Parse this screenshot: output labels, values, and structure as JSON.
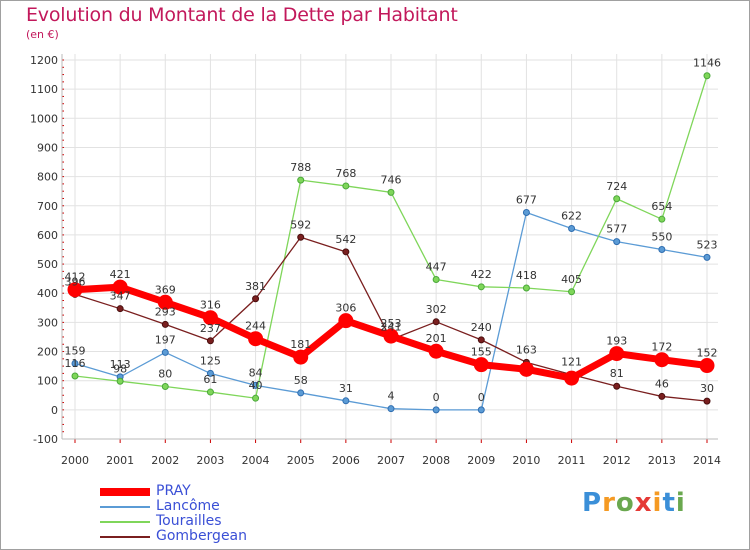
{
  "header": {
    "title": "Evolution du Montant de la Dette par Habitant",
    "subtitle": "(en €)"
  },
  "logo": {
    "letters": [
      "P",
      "r",
      "o",
      "x",
      "i",
      "t",
      "i"
    ],
    "colors": [
      "#3b8fd8",
      "#f59a23",
      "#6aa84f",
      "#e53935",
      "#f59a23",
      "#3b8fd8",
      "#6aa84f"
    ]
  },
  "chart_data": {
    "type": "line",
    "title": "Evolution du Montant de la Dette par Habitant",
    "subtitle": "(en €)",
    "x": [
      "2000",
      "2001",
      "2002",
      "2003",
      "2004",
      "2005",
      "2006",
      "2007",
      "2008",
      "2009",
      "2010",
      "2011",
      "2012",
      "2013",
      "2014"
    ],
    "ylim": [
      -100,
      1200
    ],
    "yticks": [
      -100,
      0,
      100,
      200,
      300,
      400,
      500,
      600,
      700,
      800,
      900,
      1000,
      1100,
      1200
    ],
    "grid": true,
    "legend_position": "bottom-left",
    "series": [
      {
        "name": "PRAY",
        "color": "#ff0000",
        "values": [
          412,
          421,
          369,
          316,
          244,
          181,
          306,
          253,
          201,
          155,
          139,
          109,
          193,
          172,
          152
        ],
        "labels": [
          "412",
          "421",
          "369",
          "316",
          "244",
          "181",
          "306",
          "253",
          "201",
          "155",
          "",
          "",
          "193",
          "172",
          "152"
        ]
      },
      {
        "name": "Lancôme",
        "color": "#5b9bd5",
        "values": [
          159,
          113,
          197,
          125,
          84,
          58,
          31,
          4,
          0,
          0,
          677,
          622,
          577,
          550,
          523
        ],
        "labels": [
          "159",
          "113",
          "197",
          "125",
          "84",
          "58",
          "31",
          "4",
          "0",
          "0",
          "677",
          "622",
          "577",
          "550",
          "523"
        ]
      },
      {
        "name": "Tourailles",
        "color": "#7fd65a",
        "values": [
          116,
          98,
          80,
          61,
          40,
          788,
          768,
          746,
          447,
          422,
          418,
          405,
          724,
          654,
          1146
        ],
        "labels": [
          "116",
          "98",
          "80",
          "61",
          "40",
          "788",
          "768",
          "746",
          "447",
          "422",
          "418",
          "405",
          "724",
          "654",
          "1146"
        ]
      },
      {
        "name": "Gombergean",
        "color": "#7a1f1f",
        "values": [
          396,
          347,
          293,
          237,
          381,
          592,
          542,
          241,
          302,
          240,
          163,
          121,
          81,
          46,
          30
        ],
        "labels": [
          "396",
          "347",
          "293",
          "237",
          "381",
          "592",
          "542",
          "241",
          "302",
          "240",
          "163",
          "121",
          "81",
          "46",
          "30"
        ]
      }
    ]
  }
}
